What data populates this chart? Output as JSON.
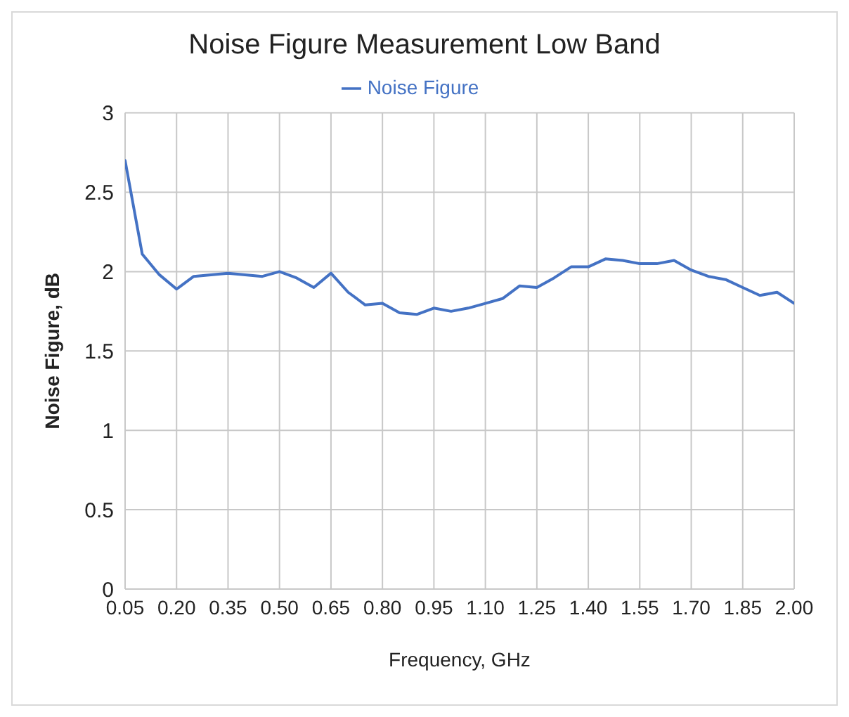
{
  "chart_data": {
    "type": "line",
    "title": "Noise Figure Measurement Low Band",
    "xlabel": "Frequency, GHz",
    "ylabel": "Noise Figure, dB",
    "x": [
      0.05,
      0.1,
      0.15,
      0.2,
      0.25,
      0.3,
      0.35,
      0.4,
      0.45,
      0.5,
      0.55,
      0.6,
      0.65,
      0.7,
      0.75,
      0.8,
      0.85,
      0.9,
      0.95,
      1.0,
      1.05,
      1.1,
      1.15,
      1.2,
      1.25,
      1.3,
      1.35,
      1.4,
      1.45,
      1.5,
      1.55,
      1.6,
      1.65,
      1.7,
      1.75,
      1.8,
      1.85,
      1.9,
      1.95,
      2.0
    ],
    "series": [
      {
        "name": "Noise Figure",
        "color": "#4472c4",
        "values": [
          2.7,
          2.11,
          1.98,
          1.89,
          1.97,
          1.98,
          1.99,
          1.98,
          1.97,
          2.0,
          1.96,
          1.9,
          1.99,
          1.87,
          1.79,
          1.8,
          1.74,
          1.73,
          1.77,
          1.75,
          1.77,
          1.8,
          1.83,
          1.91,
          1.9,
          1.96,
          2.03,
          2.03,
          2.08,
          2.07,
          2.05,
          2.05,
          2.07,
          2.01,
          1.97,
          1.95,
          1.9,
          1.85,
          1.87,
          1.8
        ]
      }
    ],
    "xlim": [
      0.05,
      2.0
    ],
    "xticks": [
      {
        "value": 0.05,
        "label": "0.05"
      },
      {
        "value": 0.2,
        "label": "0.20"
      },
      {
        "value": 0.35,
        "label": "0.35"
      },
      {
        "value": 0.5,
        "label": "0.50"
      },
      {
        "value": 0.65,
        "label": "0.65"
      },
      {
        "value": 0.8,
        "label": "0.80"
      },
      {
        "value": 0.95,
        "label": "0.95"
      },
      {
        "value": 1.1,
        "label": "1.10"
      },
      {
        "value": 1.25,
        "label": "1.25"
      },
      {
        "value": 1.4,
        "label": "1.40"
      },
      {
        "value": 1.55,
        "label": "1.55"
      },
      {
        "value": 1.7,
        "label": "1.70"
      },
      {
        "value": 1.85,
        "label": "1.85"
      },
      {
        "value": 2.0,
        "label": "2.00"
      }
    ],
    "ylim": [
      0,
      3
    ],
    "yticks": [
      0,
      0.5,
      1,
      1.5,
      2,
      2.5,
      3
    ],
    "grid": true,
    "legend": "top",
    "marker": "none",
    "line_style": "solid"
  }
}
